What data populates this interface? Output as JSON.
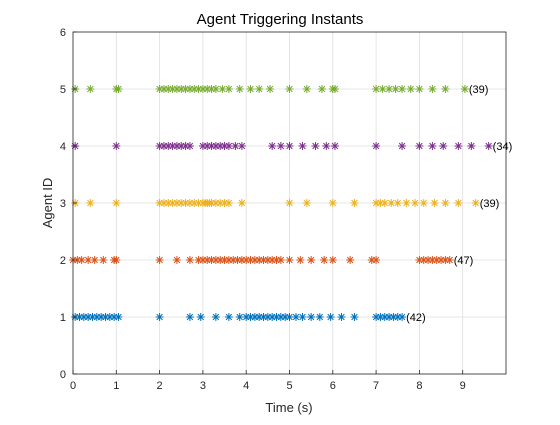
{
  "chart_data": {
    "type": "scatter",
    "title": "Agent Triggering Instants",
    "xlabel": "Time (s)",
    "ylabel": "Agent ID",
    "xlim": [
      0,
      10
    ],
    "ylim": [
      0,
      6
    ],
    "xticks": [
      0,
      1,
      2,
      3,
      4,
      5,
      6,
      7,
      8,
      9
    ],
    "yticks": [
      0,
      1,
      2,
      3,
      4,
      5,
      6
    ],
    "grid": true,
    "marker": "asterisk",
    "series": [
      {
        "agent": 1,
        "color": "#0072BD",
        "count_label": "(42)",
        "times": [
          0.05,
          0.15,
          0.25,
          0.35,
          0.45,
          0.55,
          0.65,
          0.75,
          0.85,
          0.95,
          1.05,
          2.0,
          2.7,
          2.95,
          3.3,
          3.6,
          3.85,
          4.0,
          4.1,
          4.2,
          4.3,
          4.4,
          4.5,
          4.6,
          4.7,
          4.8,
          4.9,
          5.0,
          5.15,
          5.3,
          5.5,
          5.7,
          5.95,
          6.2,
          6.5,
          7.0,
          7.1,
          7.2,
          7.3,
          7.4,
          7.5,
          7.6
        ]
      },
      {
        "agent": 2,
        "color": "#D95319",
        "count_label": "(47)",
        "times": [
          0.0,
          0.1,
          0.2,
          0.35,
          0.5,
          0.7,
          0.95,
          1.0,
          2.0,
          2.4,
          2.7,
          2.9,
          3.0,
          3.1,
          3.2,
          3.3,
          3.4,
          3.5,
          3.6,
          3.7,
          3.8,
          3.9,
          4.0,
          4.1,
          4.2,
          4.3,
          4.4,
          4.5,
          4.6,
          4.7,
          4.8,
          5.0,
          5.25,
          5.5,
          5.8,
          6.0,
          6.4,
          6.9,
          7.0,
          8.0,
          8.1,
          8.2,
          8.3,
          8.4,
          8.5,
          8.6,
          8.7
        ]
      },
      {
        "agent": 3,
        "color": "#EDB120",
        "count_label": "(39)",
        "times": [
          0.05,
          0.4,
          1.0,
          2.0,
          2.1,
          2.2,
          2.3,
          2.4,
          2.5,
          2.6,
          2.7,
          2.8,
          2.9,
          3.0,
          3.05,
          3.1,
          3.15,
          3.2,
          3.3,
          3.4,
          3.5,
          3.6,
          3.9,
          5.0,
          5.4,
          6.0,
          6.5,
          7.0,
          7.1,
          7.2,
          7.35,
          7.5,
          7.7,
          7.9,
          8.1,
          8.35,
          8.6,
          8.9,
          9.3
        ]
      },
      {
        "agent": 4,
        "color": "#7E2F8E",
        "count_label": "(34)",
        "times": [
          0.05,
          1.0,
          2.0,
          2.1,
          2.2,
          2.3,
          2.4,
          2.5,
          2.6,
          2.7,
          3.0,
          3.1,
          3.2,
          3.3,
          3.4,
          3.5,
          3.6,
          3.75,
          3.9,
          4.6,
          4.8,
          5.0,
          5.3,
          5.6,
          5.85,
          6.05,
          7.0,
          7.6,
          8.0,
          8.3,
          8.55,
          8.9,
          9.2,
          9.6
        ]
      },
      {
        "agent": 5,
        "color": "#77AC30",
        "count_label": "(39)",
        "times": [
          0.05,
          0.4,
          1.0,
          1.05,
          2.0,
          2.1,
          2.2,
          2.3,
          2.4,
          2.5,
          2.6,
          2.7,
          2.8,
          2.9,
          3.0,
          3.1,
          3.2,
          3.3,
          3.45,
          3.6,
          3.85,
          4.1,
          4.3,
          4.55,
          5.0,
          5.4,
          5.75,
          6.0,
          6.05,
          7.0,
          7.15,
          7.3,
          7.45,
          7.6,
          7.8,
          8.0,
          8.3,
          8.6,
          9.05
        ]
      }
    ]
  }
}
